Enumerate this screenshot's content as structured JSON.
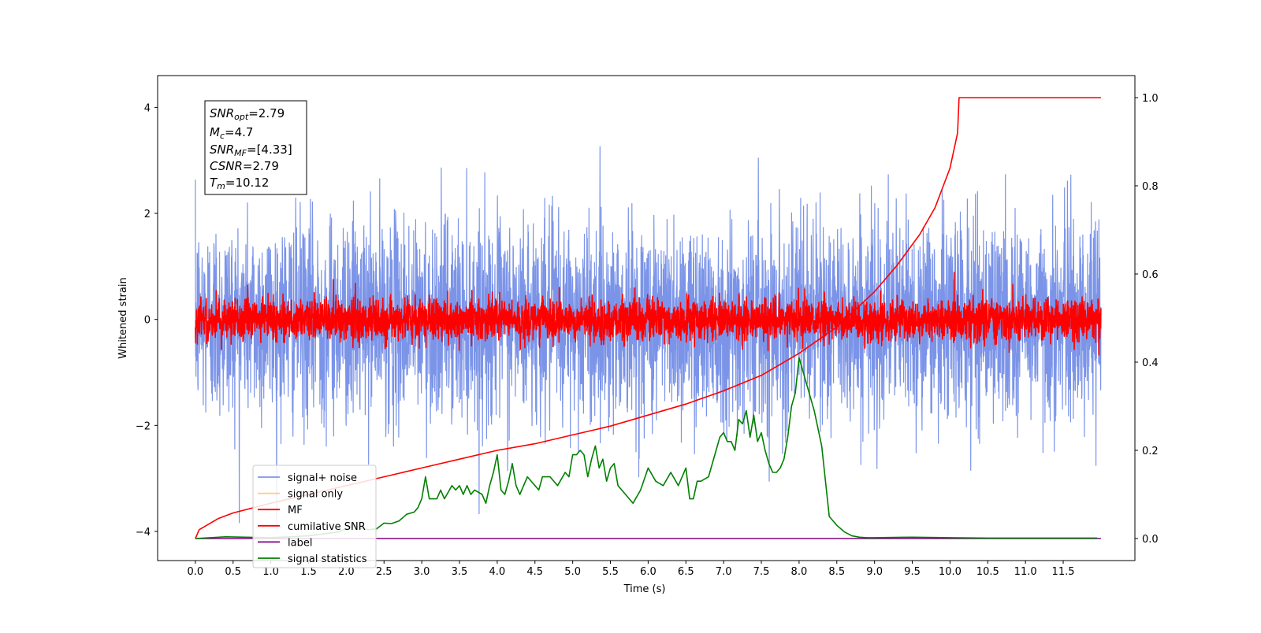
{
  "chart_data": {
    "type": "line",
    "xlabel": "Time (s)",
    "ylabel": "Whitened strain",
    "xlim": [
      -0.5,
      12.45
    ],
    "ylim_left": [
      -4.55,
      4.6
    ],
    "ylim_right": [
      -0.05,
      1.05
    ],
    "x_ticks": [
      "0.0",
      "0.5",
      "1.0",
      "1.5",
      "2.0",
      "2.5",
      "3.0",
      "3.5",
      "4.0",
      "4.5",
      "5.0",
      "5.5",
      "6.0",
      "6.5",
      "7.0",
      "7.5",
      "8.0",
      "8.5",
      "9.0",
      "9.5",
      "10.0",
      "10.5",
      "11.0",
      "11.5"
    ],
    "y_ticks_left": [
      "−4",
      "−2",
      "0",
      "2",
      "4"
    ],
    "y_ticks_right": [
      "0.0",
      "0.2",
      "0.4",
      "0.6",
      "0.8",
      "1.0"
    ],
    "legend_position": "lower-left",
    "info_box": {
      "snr_opt": {
        "base": "SNR",
        "sub": "opt",
        "value": "=2.79"
      },
      "mc": {
        "base": "M",
        "sub": "c",
        "value": "=4.7"
      },
      "snr_mf": {
        "base": "SNR",
        "sub": "MF",
        "value": "=[4.33]"
      },
      "csnr": {
        "base": "CSNR",
        "sub": "",
        "value": "=2.79"
      },
      "tm": {
        "base": "T",
        "sub": "m",
        "value": "=10.12"
      }
    },
    "series": [
      {
        "name": "signal+ noise",
        "color": "#7b94e8",
        "axis": "left",
        "kind": "noise",
        "x_range": [
          0.0,
          12.0
        ],
        "std": 0.95,
        "peak_abs": 4.17
      },
      {
        "name": "signal only",
        "color": "#ffcc80",
        "axis": "left",
        "kind": "flat",
        "x": [
          0.0,
          12.0
        ],
        "y": [
          0.0,
          0.0
        ]
      },
      {
        "name": "MF",
        "color": "#ff0000",
        "axis": "left",
        "kind": "noise",
        "x_range": [
          0.0,
          12.0
        ],
        "std": 0.2,
        "peak_abs": 0.9
      },
      {
        "name": "cumilative SNR",
        "color": "#ff0000",
        "axis": "right",
        "x": [
          0.0,
          0.05,
          0.3,
          0.5,
          1.0,
          1.5,
          2.0,
          2.5,
          3.0,
          3.5,
          4.0,
          4.5,
          5.0,
          5.5,
          6.0,
          6.5,
          7.0,
          7.5,
          8.0,
          8.5,
          9.0,
          9.3,
          9.6,
          9.8,
          10.0,
          10.1,
          10.12,
          12.0
        ],
        "y": [
          0.0,
          0.02,
          0.045,
          0.058,
          0.08,
          0.1,
          0.12,
          0.14,
          0.16,
          0.18,
          0.2,
          0.215,
          0.235,
          0.255,
          0.28,
          0.305,
          0.335,
          0.37,
          0.42,
          0.48,
          0.56,
          0.62,
          0.69,
          0.75,
          0.84,
          0.92,
          1.0,
          1.0
        ]
      },
      {
        "name": "label",
        "color": "#800080",
        "axis": "right",
        "x": [
          0.0,
          12.0
        ],
        "y": [
          0.0,
          0.0
        ]
      },
      {
        "name": "signal statistics",
        "color": "#008000",
        "axis": "right",
        "x": [
          0.0,
          0.4,
          1.0,
          1.5,
          1.9,
          2.1,
          2.2,
          2.3,
          2.4,
          2.5,
          2.6,
          2.7,
          2.8,
          2.9,
          2.95,
          3.0,
          3.05,
          3.1,
          3.2,
          3.25,
          3.3,
          3.4,
          3.45,
          3.5,
          3.55,
          3.6,
          3.65,
          3.7,
          3.8,
          3.85,
          3.9,
          3.95,
          4.0,
          4.05,
          4.1,
          4.15,
          4.2,
          4.25,
          4.3,
          4.4,
          4.5,
          4.55,
          4.6,
          4.7,
          4.8,
          4.9,
          4.95,
          5.0,
          5.05,
          5.1,
          5.15,
          5.2,
          5.25,
          5.3,
          5.35,
          5.4,
          5.45,
          5.5,
          5.55,
          5.6,
          5.7,
          5.8,
          5.9,
          6.0,
          6.1,
          6.2,
          6.3,
          6.4,
          6.5,
          6.55,
          6.6,
          6.65,
          6.7,
          6.8,
          6.9,
          6.95,
          7.0,
          7.05,
          7.1,
          7.15,
          7.2,
          7.25,
          7.3,
          7.35,
          7.4,
          7.45,
          7.5,
          7.55,
          7.6,
          7.65,
          7.7,
          7.75,
          7.8,
          7.85,
          7.9,
          7.95,
          8.0,
          8.05,
          8.1,
          8.15,
          8.2,
          8.3,
          8.35,
          8.4,
          8.45,
          8.5,
          8.6,
          8.7,
          8.8,
          8.9,
          9.0,
          9.5,
          10.0,
          10.5,
          11.0,
          11.5,
          11.95
        ],
        "y": [
          0.0,
          0.004,
          0.002,
          0.006,
          0.015,
          0.03,
          0.023,
          0.02,
          0.022,
          0.035,
          0.034,
          0.04,
          0.055,
          0.06,
          0.07,
          0.09,
          0.14,
          0.09,
          0.09,
          0.11,
          0.09,
          0.12,
          0.11,
          0.12,
          0.1,
          0.12,
          0.1,
          0.11,
          0.1,
          0.08,
          0.12,
          0.15,
          0.19,
          0.11,
          0.1,
          0.13,
          0.17,
          0.12,
          0.1,
          0.14,
          0.12,
          0.11,
          0.14,
          0.14,
          0.12,
          0.15,
          0.14,
          0.19,
          0.19,
          0.2,
          0.19,
          0.14,
          0.18,
          0.21,
          0.16,
          0.18,
          0.13,
          0.16,
          0.17,
          0.12,
          0.1,
          0.08,
          0.11,
          0.16,
          0.13,
          0.12,
          0.15,
          0.12,
          0.16,
          0.09,
          0.09,
          0.13,
          0.13,
          0.14,
          0.2,
          0.23,
          0.24,
          0.22,
          0.22,
          0.2,
          0.27,
          0.26,
          0.29,
          0.23,
          0.28,
          0.22,
          0.24,
          0.2,
          0.17,
          0.15,
          0.15,
          0.16,
          0.18,
          0.23,
          0.3,
          0.33,
          0.41,
          0.38,
          0.35,
          0.32,
          0.29,
          0.21,
          0.13,
          0.05,
          0.04,
          0.03,
          0.015,
          0.006,
          0.003,
          0.002,
          0.002,
          0.003,
          0.002,
          0.001,
          0.001,
          0.001,
          0.001
        ]
      }
    ]
  }
}
